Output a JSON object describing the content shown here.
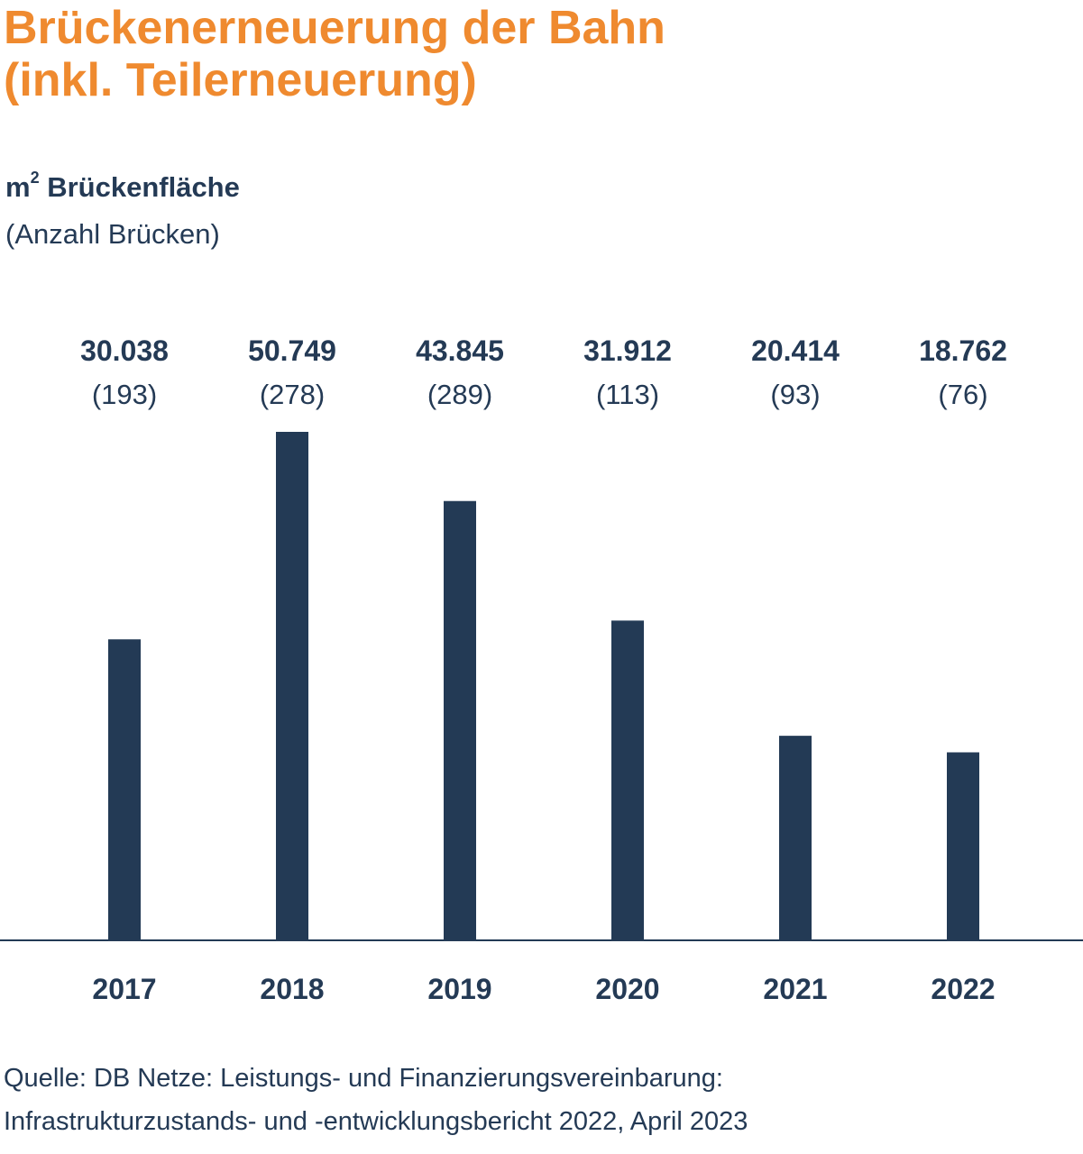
{
  "title_line1": "Brückenerneuerung der Bahn",
  "title_line2": "(inkl. Teilerneuerung)",
  "ylabel_unit": "m",
  "ylabel_exponent": "2",
  "ylabel_main": "Brückenfläche",
  "ylabel_sub": "(Anzahl Brücken)",
  "source_line1": "Quelle: DB Netze: Leistungs- und Finanzierungsvereinbarung:",
  "source_line2": "Infrastrukturzustands- und -entwicklungsbericht 2022, April 2023",
  "colors": {
    "title": "#ef8a2f",
    "bars": "#233a55",
    "text": "#243a55"
  },
  "chart_data": {
    "type": "bar",
    "categories": [
      "2017",
      "2018",
      "2019",
      "2020",
      "2021",
      "2022"
    ],
    "series": [
      {
        "values": [
          30038,
          50749,
          43845,
          31912,
          20414,
          18762
        ],
        "value_labels": [
          "30.038",
          "50.749",
          "43.845",
          "31.912",
          "20.414",
          "18.762"
        ]
      }
    ],
    "counts": [
      193,
      278,
      289,
      113,
      93,
      76
    ],
    "count_labels": [
      "(193)",
      "(278)",
      "(289)",
      "(113)",
      "(93)",
      "(76)"
    ],
    "ylim": [
      0,
      50749
    ],
    "grid": false,
    "legend": "none"
  }
}
